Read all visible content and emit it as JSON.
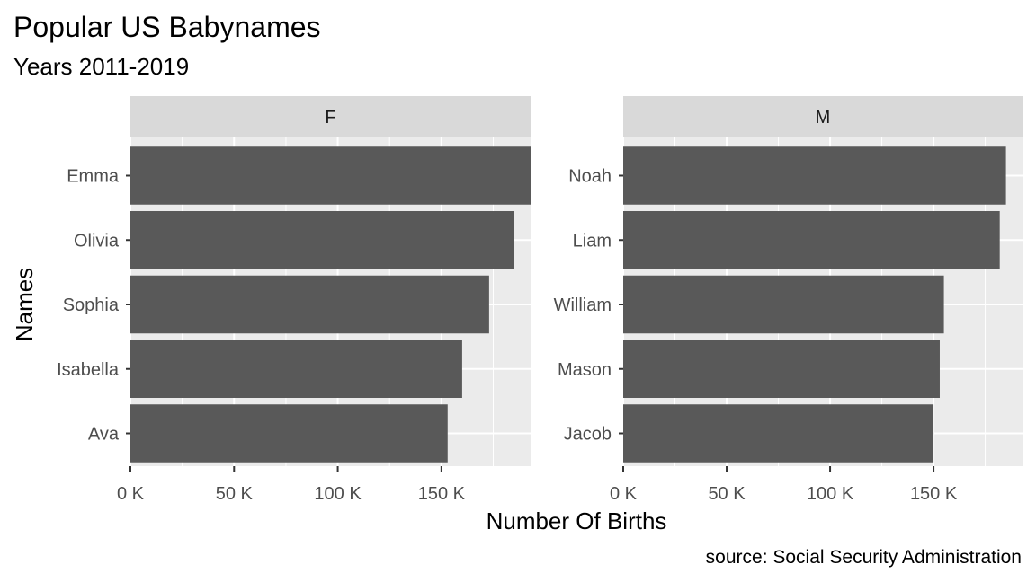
{
  "chart_data": {
    "type": "bar",
    "orientation": "horizontal",
    "title": "Popular US Babynames",
    "subtitle": "Years 2011-2019",
    "xlabel": "Number Of Births",
    "ylabel": "Names",
    "caption": "source: Social Security Administration",
    "xlim": [
      0,
      193000
    ],
    "x_ticks": [
      0,
      50000,
      100000,
      150000
    ],
    "x_tick_labels": [
      "0 K",
      "50 K",
      "100 K",
      "150 K"
    ],
    "grid": true,
    "panel_background": "#ebebeb",
    "bar_color": "#595959",
    "strip_background": "#d9d9d9",
    "facets": [
      {
        "label": "F",
        "categories": [
          "Emma",
          "Olivia",
          "Sophia",
          "Isabella",
          "Ava"
        ],
        "values": [
          193000,
          185000,
          173000,
          160000,
          153000
        ]
      },
      {
        "label": "M",
        "categories": [
          "Noah",
          "Liam",
          "William",
          "Mason",
          "Jacob"
        ],
        "values": [
          185000,
          182000,
          155000,
          153000,
          150000
        ]
      }
    ]
  }
}
